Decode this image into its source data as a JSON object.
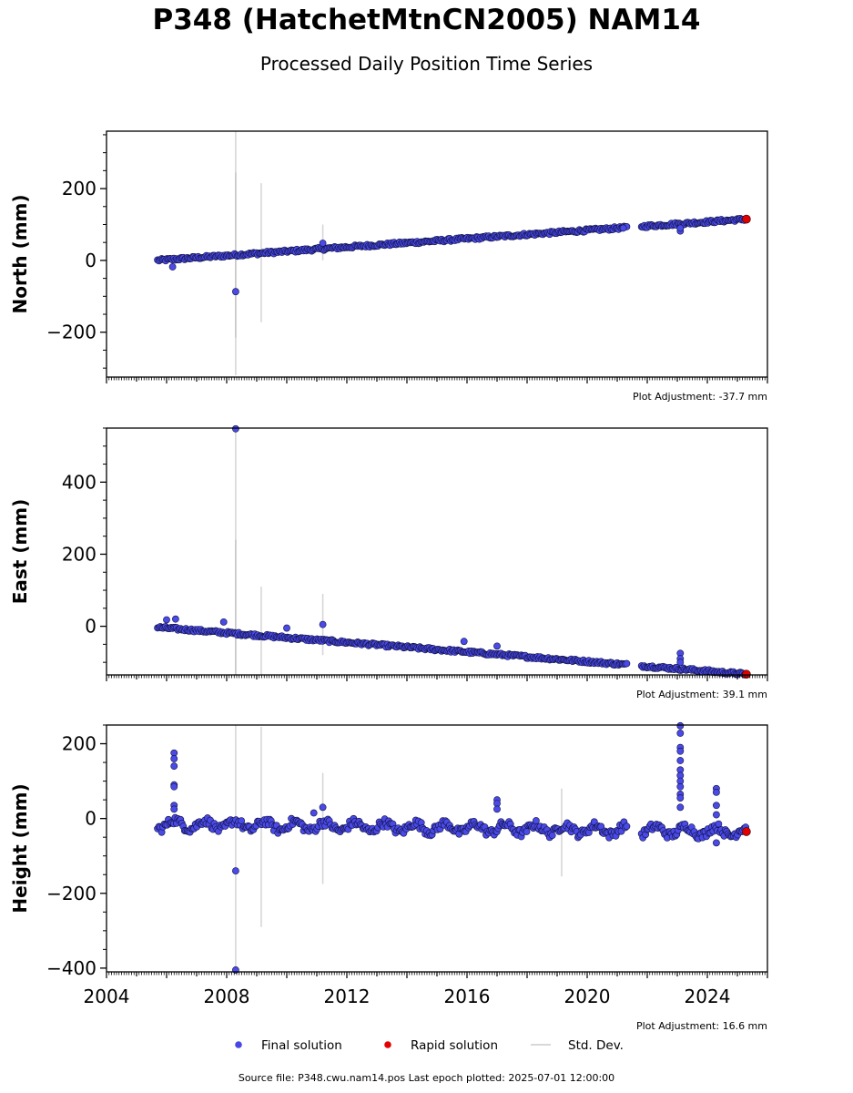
{
  "title": "P348 (HatchetMtnCN2005) NAM14",
  "subtitle": "Processed Daily Position Time Series",
  "footer": {
    "source_label": "Source file:",
    "source_file": "P348.cwu.nam14.pos",
    "last_epoch_label": "Last epoch plotted:",
    "last_epoch": "2025-07-01 12:00:00",
    "text": "Source file: P348.cwu.nam14.pos  Last epoch plotted: 2025-07-01 12:00:00"
  },
  "legend": {
    "placement": "bottom-center",
    "items": [
      {
        "label": "Final solution",
        "marker": "circle",
        "color": "#4747e6"
      },
      {
        "label": "Rapid solution",
        "marker": "circle",
        "color": "#e60000"
      },
      {
        "label": "Std. Dev.",
        "marker": "line",
        "color": "#cccccc"
      }
    ]
  },
  "colors": {
    "final_fill": "#4a4ae8",
    "final_edge": "#101040",
    "rapid_fill": "#e00000",
    "stddev": "#b8b8b8"
  },
  "chart_data": [
    {
      "type": "scatter",
      "panel": "north",
      "ylabel": "North (mm)",
      "adjustment": "Plot Adjustment: -37.7 mm",
      "xlim": [
        2004.0,
        2026.0
      ],
      "ylim": [
        -325,
        360
      ],
      "yticks": [
        -200,
        0,
        200
      ],
      "ytick_labels": [
        "−200",
        "0",
        "200"
      ],
      "grid": false,
      "trend": {
        "start": [
          2005.7,
          0
        ],
        "end": [
          2025.3,
          115
        ],
        "gap": [
          2021.35,
          2021.8
        ]
      },
      "rapid_end": [
        2025.3,
        115
      ],
      "stddev_bars": [
        {
          "x": 2008.3,
          "lo": -320,
          "hi": 360
        },
        {
          "x": 2008.3,
          "lo": -215,
          "hi": 245
        },
        {
          "x": 2009.15,
          "lo": -172,
          "hi": 215
        },
        {
          "x": 2011.2,
          "lo": 0,
          "hi": 100
        }
      ],
      "outliers": [
        {
          "x": 2008.3,
          "y": -87
        },
        {
          "x": 2011.2,
          "y": 48
        },
        {
          "x": 2006.2,
          "y": -18
        },
        {
          "x": 2023.1,
          "y": 82
        },
        {
          "x": 2023.1,
          "y": 90
        },
        {
          "x": 2021.2,
          "y": 90
        }
      ]
    },
    {
      "type": "scatter",
      "panel": "east",
      "ylabel": "East (mm)",
      "adjustment": "Plot Adjustment: 39.1 mm",
      "xlim": [
        2004.0,
        2026.0
      ],
      "ylim": [
        -135,
        550
      ],
      "yticks": [
        0,
        200,
        400
      ],
      "ytick_labels": [
        "0",
        "200",
        "400"
      ],
      "grid": false,
      "trend": {
        "start": [
          2005.7,
          -3
        ],
        "end": [
          2025.3,
          -133
        ],
        "gap": [
          2021.35,
          2021.8
        ]
      },
      "rapid_end": [
        2025.3,
        -133
      ],
      "stddev_bars": [
        {
          "x": 2008.3,
          "lo": -135,
          "hi": 550
        },
        {
          "x": 2008.3,
          "lo": -135,
          "hi": 240
        },
        {
          "x": 2009.15,
          "lo": -135,
          "hi": 110
        },
        {
          "x": 2011.2,
          "lo": -80,
          "hi": 90
        }
      ],
      "outliers": [
        {
          "x": 2008.3,
          "y": 548
        },
        {
          "x": 2011.2,
          "y": 5
        },
        {
          "x": 2006.0,
          "y": 18
        },
        {
          "x": 2006.3,
          "y": 20
        },
        {
          "x": 2007.9,
          "y": 12
        },
        {
          "x": 2010.0,
          "y": -5
        },
        {
          "x": 2015.9,
          "y": -42
        },
        {
          "x": 2017.0,
          "y": -55
        },
        {
          "x": 2023.1,
          "y": -75
        },
        {
          "x": 2023.1,
          "y": -90
        },
        {
          "x": 2023.1,
          "y": -100
        }
      ]
    },
    {
      "type": "scatter",
      "panel": "height",
      "ylabel": "Height (mm)",
      "adjustment": "Plot Adjustment: 16.6 mm",
      "xlabel": "",
      "xlim": [
        2004.0,
        2026.0
      ],
      "ylim": [
        -410,
        250
      ],
      "yticks": [
        -400,
        -200,
        0,
        200
      ],
      "ytick_labels": [
        "−400",
        "−200",
        "0",
        "200"
      ],
      "xticks": [
        2004,
        2008,
        2012,
        2016,
        2020,
        2024
      ],
      "xtick_labels": [
        "2004",
        "2008",
        "2012",
        "2016",
        "2020",
        "2024"
      ],
      "grid": false,
      "trend": {
        "start": [
          2005.7,
          -15
        ],
        "end": [
          2025.3,
          -35
        ],
        "gap": [
          2021.35,
          2021.8
        ]
      },
      "rapid_end": [
        2025.3,
        -35
      ],
      "stddev_bars": [
        {
          "x": 2008.3,
          "lo": -410,
          "hi": 250
        },
        {
          "x": 2009.15,
          "lo": -290,
          "hi": 245
        },
        {
          "x": 2011.2,
          "lo": -175,
          "hi": 122
        },
        {
          "x": 2019.15,
          "lo": -155,
          "hi": 80
        }
      ],
      "outliers": [
        {
          "x": 2008.3,
          "y": -140
        },
        {
          "x": 2008.3,
          "y": -405
        },
        {
          "x": 2006.25,
          "y": 175
        },
        {
          "x": 2006.25,
          "y": 160
        },
        {
          "x": 2006.25,
          "y": 140
        },
        {
          "x": 2006.25,
          "y": 90
        },
        {
          "x": 2006.25,
          "y": 85
        },
        {
          "x": 2006.25,
          "y": 35
        },
        {
          "x": 2006.25,
          "y": 25
        },
        {
          "x": 2011.2,
          "y": 30
        },
        {
          "x": 2010.9,
          "y": 15
        },
        {
          "x": 2017.0,
          "y": 50
        },
        {
          "x": 2017.0,
          "y": 40
        },
        {
          "x": 2017.0,
          "y": 25
        },
        {
          "x": 2023.1,
          "y": 248
        },
        {
          "x": 2023.1,
          "y": 228
        },
        {
          "x": 2023.1,
          "y": 190
        },
        {
          "x": 2023.1,
          "y": 180
        },
        {
          "x": 2023.1,
          "y": 155
        },
        {
          "x": 2023.1,
          "y": 130
        },
        {
          "x": 2023.1,
          "y": 115
        },
        {
          "x": 2023.1,
          "y": 100
        },
        {
          "x": 2023.1,
          "y": 85
        },
        {
          "x": 2023.1,
          "y": 65
        },
        {
          "x": 2023.1,
          "y": 55
        },
        {
          "x": 2023.1,
          "y": 30
        },
        {
          "x": 2024.3,
          "y": 80
        },
        {
          "x": 2024.3,
          "y": 70
        },
        {
          "x": 2024.3,
          "y": 35
        },
        {
          "x": 2024.3,
          "y": 10
        },
        {
          "x": 2024.3,
          "y": -65
        }
      ]
    }
  ]
}
